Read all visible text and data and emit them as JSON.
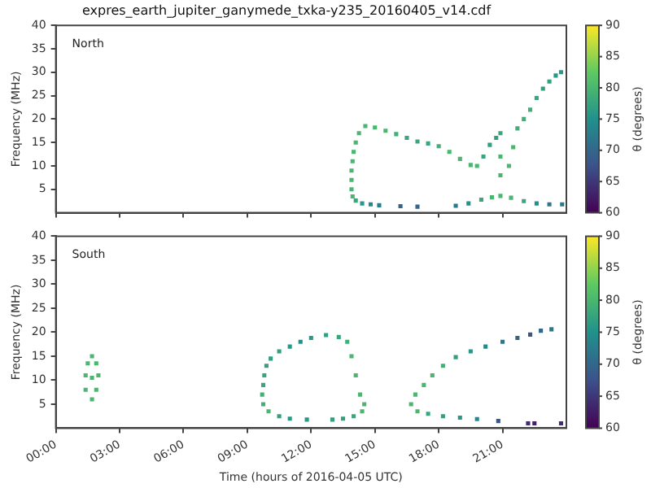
{
  "chart_data": [
    {
      "type": "scatter",
      "title": "expres_earth_jupiter_ganymede_txka-y235_20160405_v14.cdf",
      "ylabel": "Frequency (MHz)",
      "clabel": "θ (degrees)",
      "annotations": [
        "North"
      ],
      "marker": "square",
      "tick_labels": "y",
      "xlim": [
        0,
        24
      ],
      "xticks": [
        {
          "value": 0,
          "label": null
        },
        {
          "value": 3,
          "label": null
        },
        {
          "value": 6,
          "label": null
        },
        {
          "value": 9,
          "label": null
        },
        {
          "value": 12,
          "label": null
        },
        {
          "value": 15,
          "label": null
        },
        {
          "value": 18,
          "label": null
        },
        {
          "value": 21,
          "label": null
        }
      ],
      "ylim": [
        0,
        40
      ],
      "yticks": [
        5,
        10,
        15,
        20,
        25,
        30,
        35,
        40
      ],
      "clim": [
        60,
        90
      ],
      "cticks": [
        60,
        65,
        70,
        75,
        80,
        85,
        90
      ],
      "x": [
        13.95,
        13.9,
        13.9,
        13.9,
        13.95,
        14.0,
        14.1,
        14.25,
        14.55,
        15.0,
        15.5,
        16.0,
        16.5,
        17.0,
        17.5,
        18.0,
        18.5,
        19.0,
        19.5,
        19.8,
        20.1,
        20.4,
        20.7,
        20.9,
        20.9,
        20.9,
        21.3,
        21.5,
        21.7,
        22.0,
        22.3,
        22.6,
        22.9,
        23.2,
        23.5,
        23.75,
        14.1,
        14.4,
        14.8,
        15.2,
        16.2,
        17.0,
        18.8,
        19.4,
        20.0,
        20.5,
        20.9,
        21.4,
        22.0,
        22.6,
        23.2,
        23.8
      ],
      "values": [
        3.5,
        5,
        7,
        9,
        11,
        13,
        15,
        17,
        18.5,
        18.2,
        17.5,
        16.8,
        16,
        15.2,
        14.8,
        14.2,
        13,
        11.5,
        10.2,
        10,
        12,
        14.5,
        16,
        17,
        12,
        8,
        10,
        14,
        18,
        20,
        22,
        24.5,
        26.5,
        28,
        29.3,
        30,
        2.6,
        2,
        1.8,
        1.6,
        1.4,
        1.3,
        1.5,
        2,
        2.8,
        3.3,
        3.6,
        3.2,
        2.5,
        2,
        1.8,
        1.8
      ],
      "cvalues": [
        80,
        80,
        80,
        80,
        80,
        80,
        80,
        80,
        80,
        80,
        80,
        79,
        78,
        78,
        78,
        79,
        80,
        80,
        80,
        80,
        78,
        77,
        77,
        78,
        80,
        80,
        80,
        80,
        79,
        79,
        79,
        78,
        77,
        77,
        76,
        76,
        78,
        76,
        74,
        73,
        70,
        70,
        72,
        75,
        78,
        80,
        80,
        80,
        78,
        75,
        72,
        72
      ]
    },
    {
      "type": "scatter",
      "xlabel": "Time (hours of 2016-04-05 UTC)",
      "ylabel": "Frequency (MHz)",
      "clabel": "θ (degrees)",
      "annotations": [
        "South"
      ],
      "marker": "square",
      "xlim": [
        0,
        24
      ],
      "xticks": [
        {
          "value": 0,
          "label": "00:00"
        },
        {
          "value": 3,
          "label": "03:00"
        },
        {
          "value": 6,
          "label": "06:00"
        },
        {
          "value": 9,
          "label": "09:00"
        },
        {
          "value": 12,
          "label": "12:00"
        },
        {
          "value": 15,
          "label": "15:00"
        },
        {
          "value": 18,
          "label": "18:00"
        },
        {
          "value": 21,
          "label": "21:00"
        }
      ],
      "ylim": [
        0,
        40
      ],
      "yticks": [
        5,
        10,
        15,
        20,
        25,
        30,
        35,
        40
      ],
      "clim": [
        60,
        90
      ],
      "cticks": [
        60,
        65,
        70,
        75,
        80,
        85,
        90
      ],
      "x": [
        1.4,
        1.4,
        1.5,
        1.7,
        1.9,
        2.0,
        1.9,
        1.7,
        1.7,
        10.0,
        9.75,
        9.7,
        9.75,
        9.8,
        9.9,
        10.1,
        10.5,
        11.0,
        11.5,
        12.0,
        12.7,
        13.3,
        13.7,
        13.9,
        14.1,
        14.3,
        14.5,
        14.4,
        14.0,
        13.5,
        13.0,
        11.8,
        11.0,
        10.5,
        16.7,
        16.9,
        17.3,
        17.7,
        18.2,
        18.8,
        19.5,
        20.2,
        21.0,
        21.7,
        22.3,
        22.8,
        23.3,
        17.0,
        17.5,
        18.2,
        19.0,
        19.8,
        20.8,
        22.2,
        22.5,
        23.75
      ],
      "values": [
        8,
        11,
        13.5,
        15,
        13.5,
        11,
        8,
        6,
        10.5,
        3.5,
        5,
        7,
        9,
        11,
        13,
        14.5,
        16,
        17,
        18,
        18.8,
        19.4,
        19,
        18,
        15,
        11,
        7,
        5,
        3.5,
        2.5,
        2,
        1.8,
        1.8,
        2,
        2.5,
        5,
        7,
        9,
        11,
        13,
        14.8,
        16,
        17,
        18,
        18.8,
        19.5,
        20.3,
        20.6,
        3.5,
        3,
        2.5,
        2.2,
        1.9,
        1.5,
        1,
        1,
        1
      ],
      "cvalues": [
        80,
        80,
        80,
        80,
        80,
        80,
        80,
        80,
        80,
        80,
        79,
        79,
        78,
        78,
        77,
        77,
        77,
        76,
        75,
        76,
        77,
        78,
        79,
        80,
        80,
        80,
        80,
        80,
        78,
        77,
        77,
        76,
        76,
        77,
        80,
        80,
        80,
        80,
        79,
        77,
        76,
        74,
        72,
        70,
        68,
        70,
        72,
        80,
        78,
        77,
        76,
        74,
        68,
        64,
        63,
        64
      ]
    }
  ]
}
